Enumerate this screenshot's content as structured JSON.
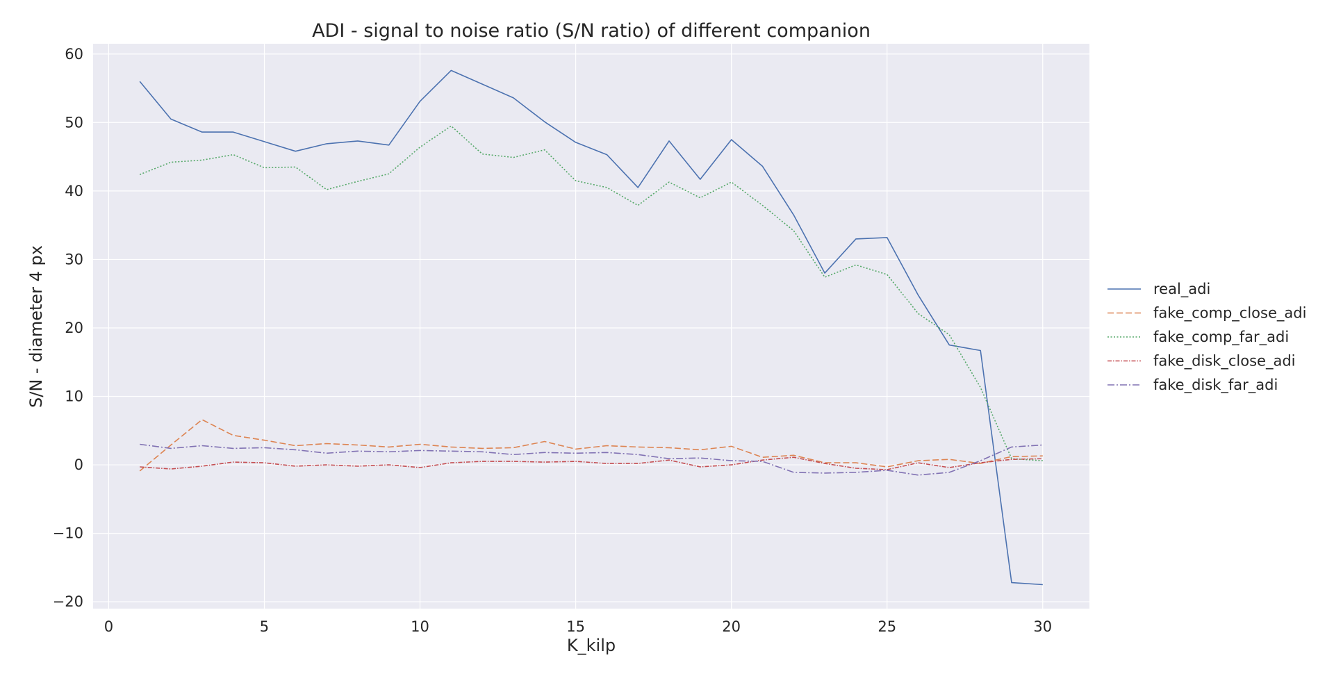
{
  "chart_data": {
    "type": "line",
    "title": "ADI - signal to noise ratio (S/N ratio) of different companion",
    "xlabel": "K_kilp",
    "ylabel": "S/N - diameter 4 px",
    "xlim": [
      -0.5,
      31.5
    ],
    "ylim": [
      -21,
      61.5
    ],
    "xticks": [
      0,
      5,
      10,
      15,
      20,
      25,
      30
    ],
    "xtick_labels": [
      "0",
      "5",
      "10",
      "15",
      "20",
      "25",
      "30"
    ],
    "yticks": [
      -20,
      -10,
      0,
      10,
      20,
      30,
      40,
      50,
      60
    ],
    "ytick_labels": [
      "−20",
      "−10",
      "0",
      "10",
      "20",
      "30",
      "40",
      "50",
      "60"
    ],
    "grid": true,
    "legend_position": "outside-right",
    "x": [
      1,
      2,
      3,
      4,
      5,
      6,
      7,
      8,
      9,
      10,
      11,
      12,
      13,
      14,
      15,
      16,
      17,
      18,
      19,
      20,
      21,
      22,
      23,
      24,
      25,
      26,
      27,
      28,
      29,
      30
    ],
    "series": [
      {
        "name": "real_adi",
        "color": "#4c72b0",
        "dash": "",
        "values": [
          56.0,
          50.5,
          48.6,
          48.6,
          47.2,
          45.8,
          46.9,
          47.3,
          46.7,
          53.1,
          57.6,
          55.6,
          53.6,
          50.1,
          47.1,
          45.3,
          40.5,
          47.3,
          41.7,
          47.5,
          43.6,
          36.5,
          28.0,
          33.0,
          33.2,
          24.8,
          17.5,
          16.7,
          -17.2,
          -17.5
        ]
      },
      {
        "name": "fake_comp_close_adi",
        "color": "#dd8452",
        "dash": "9,4",
        "values": [
          -0.9,
          2.9,
          6.6,
          4.3,
          3.6,
          2.8,
          3.1,
          2.9,
          2.6,
          3.0,
          2.6,
          2.4,
          2.5,
          3.4,
          2.3,
          2.8,
          2.6,
          2.5,
          2.2,
          2.7,
          1.1,
          1.4,
          0.3,
          0.3,
          -0.3,
          0.6,
          0.8,
          0.2,
          1.2,
          1.3
        ]
      },
      {
        "name": "fake_comp_far_adi",
        "color": "#55a868",
        "dash": "2,2.5",
        "values": [
          42.4,
          44.2,
          44.5,
          45.3,
          43.4,
          43.5,
          40.2,
          41.4,
          42.5,
          46.4,
          49.5,
          45.4,
          44.9,
          46.0,
          41.5,
          40.5,
          37.9,
          41.3,
          39.0,
          41.3,
          37.9,
          34.2,
          27.4,
          29.2,
          27.8,
          22.1,
          19.0,
          11.3,
          0.9,
          0.6
        ]
      },
      {
        "name": "fake_disk_close_adi",
        "color": "#c44e52",
        "dash": "6,2,1.5,2",
        "values": [
          -0.3,
          -0.6,
          -0.2,
          0.4,
          0.3,
          -0.2,
          0.0,
          -0.2,
          0.0,
          -0.4,
          0.3,
          0.5,
          0.5,
          0.4,
          0.5,
          0.2,
          0.2,
          0.7,
          -0.3,
          0.0,
          0.7,
          1.1,
          0.2,
          -0.5,
          -0.7,
          0.3,
          -0.4,
          0.3,
          0.8,
          0.9
        ]
      },
      {
        "name": "fake_disk_far_adi",
        "color": "#8172b3",
        "dash": "10,3,2,3",
        "values": [
          3.0,
          2.4,
          2.8,
          2.4,
          2.5,
          2.2,
          1.7,
          2.0,
          1.9,
          2.1,
          2.0,
          1.9,
          1.5,
          1.8,
          1.7,
          1.8,
          1.5,
          0.9,
          1.0,
          0.6,
          0.5,
          -1.1,
          -1.2,
          -1.1,
          -0.8,
          -1.5,
          -1.1,
          0.6,
          2.6,
          2.9
        ]
      }
    ]
  }
}
